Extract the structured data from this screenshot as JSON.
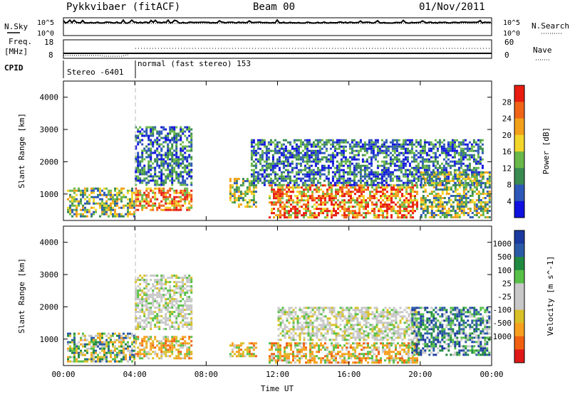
{
  "header": {
    "station": "Pykkvibaer (fitACF)",
    "beam": "Beam 00",
    "date": "01/Nov/2011"
  },
  "params": {
    "nsky_label": "N.Sky",
    "nsearch_label": "N.Search",
    "freq_label": "Freq.",
    "freq_unit": "[MHz]",
    "nave_label": "Nave",
    "cpid_label": "CPID",
    "cpid_segments": [
      "Stereo -6401",
      "normal (fast stereo) 153"
    ],
    "noise_ticks": [
      "10^5",
      "10^0"
    ],
    "freq_ticks": [
      "18",
      "8"
    ],
    "nave_ticks": [
      "60",
      "0"
    ]
  },
  "colors": {
    "power": [
      "#1010e0",
      "#2e58b8",
      "#3a8a52",
      "#6ab84a",
      "#f2d62a",
      "#f2a01a",
      "#f06418",
      "#e81c10"
    ],
    "velocity": [
      "#e01818",
      "#f06010",
      "#f7a020",
      "#d8c028",
      "#c8c8c8",
      "#c8c8c8",
      "#58c048",
      "#208a40",
      "#2a5aa6",
      "#1a3aa0"
    ]
  },
  "chart_data": [
    {
      "type": "heatmap",
      "panel": "power",
      "xlabel": "Time UT",
      "ylabel": "Slant Range [km]",
      "xlim": [
        0,
        24
      ],
      "ylim": [
        180,
        4500
      ],
      "x_ticks": [
        "00:00",
        "04:00",
        "08:00",
        "12:00",
        "16:00",
        "20:00",
        "00:00"
      ],
      "y_ticks": [
        1000,
        2000,
        3000,
        4000
      ],
      "colorbar_label": "Power [dB]",
      "colorbar_ticks": [
        4,
        8,
        12,
        16,
        20,
        24,
        28
      ],
      "regions": [
        {
          "t0": 0.2,
          "t1": 4.0,
          "r0": 300,
          "r1": 1200,
          "level": "medium"
        },
        {
          "t0": 4.0,
          "t1": 7.2,
          "r0": 500,
          "r1": 1200,
          "level": "strong"
        },
        {
          "t0": 4.0,
          "t1": 7.2,
          "r0": 1300,
          "r1": 3100,
          "level": "weak"
        },
        {
          "t0": 9.3,
          "t1": 10.8,
          "r0": 600,
          "r1": 1500,
          "level": "medium"
        },
        {
          "t0": 11.5,
          "t1": 19.8,
          "r0": 250,
          "r1": 1300,
          "level": "strong"
        },
        {
          "t0": 10.5,
          "t1": 23.5,
          "r0": 1300,
          "r1": 2700,
          "level": "weak"
        },
        {
          "t0": 20.0,
          "t1": 23.9,
          "r0": 300,
          "r1": 1700,
          "level": "medium"
        }
      ]
    },
    {
      "type": "heatmap",
      "panel": "velocity",
      "xlabel": "Time UT",
      "ylabel": "Slant Range [km]",
      "xlim": [
        0,
        24
      ],
      "ylim": [
        180,
        4500
      ],
      "x_ticks": [
        "00:00",
        "04:00",
        "08:00",
        "12:00",
        "16:00",
        "20:00",
        "00:00"
      ],
      "y_ticks": [
        1000,
        2000,
        3000,
        4000
      ],
      "colorbar_label": "Velocity [m s^-1]",
      "colorbar_ticks": [
        1000,
        500,
        100,
        25,
        -25,
        -100,
        -500,
        -1000
      ],
      "regions": [
        {
          "t0": 0.2,
          "t1": 4.0,
          "r0": 300,
          "r1": 1200,
          "level": "mixed"
        },
        {
          "t0": 4.0,
          "t1": 7.2,
          "r0": 400,
          "r1": 1100,
          "level": "away"
        },
        {
          "t0": 4.0,
          "t1": 7.2,
          "r0": 1300,
          "r1": 3000,
          "level": "near-zero"
        },
        {
          "t0": 9.3,
          "t1": 10.8,
          "r0": 500,
          "r1": 900,
          "level": "away"
        },
        {
          "t0": 11.5,
          "t1": 19.8,
          "r0": 300,
          "r1": 900,
          "level": "away"
        },
        {
          "t0": 12.0,
          "t1": 20.0,
          "r0": 1000,
          "r1": 2000,
          "level": "near-zero"
        },
        {
          "t0": 19.5,
          "t1": 23.9,
          "r0": 500,
          "r1": 2000,
          "level": "toward"
        }
      ]
    }
  ]
}
